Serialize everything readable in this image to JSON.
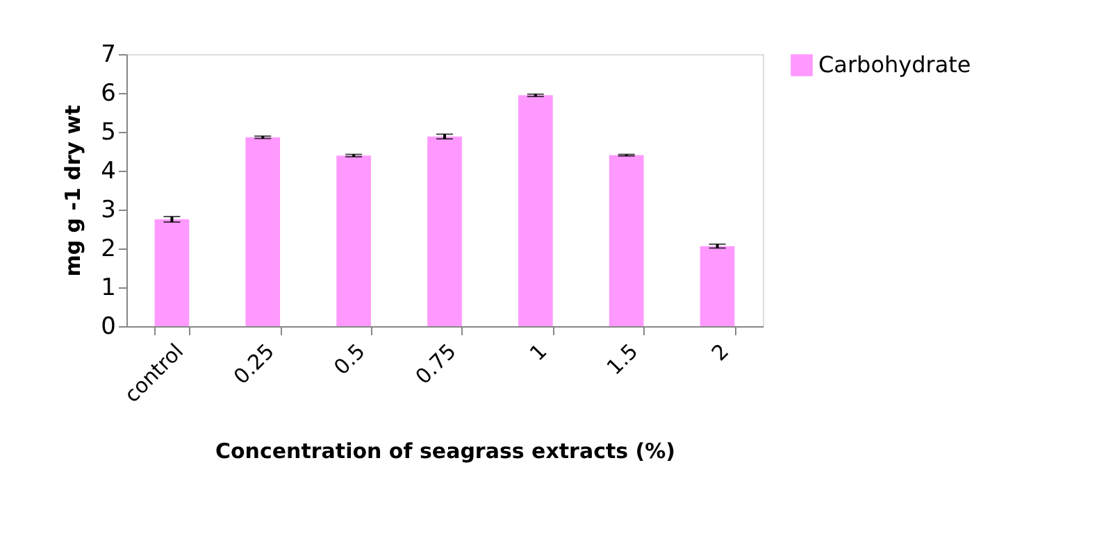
{
  "chart_data": {
    "type": "bar",
    "xlabel": "Concentration of seagrass extracts (%)",
    "ylabel": "mg g -1 dry wt",
    "categories": [
      "control",
      "0.25",
      "0.5",
      "0.75",
      "1",
      "1.5",
      "2"
    ],
    "series": [
      {
        "name": "Carbohydrate",
        "color": "#ff99ff",
        "values": [
          2.75,
          4.86,
          4.39,
          4.88,
          5.94,
          4.4,
          2.06
        ],
        "errors": [
          0.07,
          0.03,
          0.03,
          0.06,
          0.03,
          0.02,
          0.05
        ]
      }
    ],
    "ylim": [
      0,
      7
    ],
    "yticks": [
      0,
      1,
      2,
      3,
      4,
      5,
      6,
      7
    ],
    "grid": false,
    "legend": "right"
  }
}
